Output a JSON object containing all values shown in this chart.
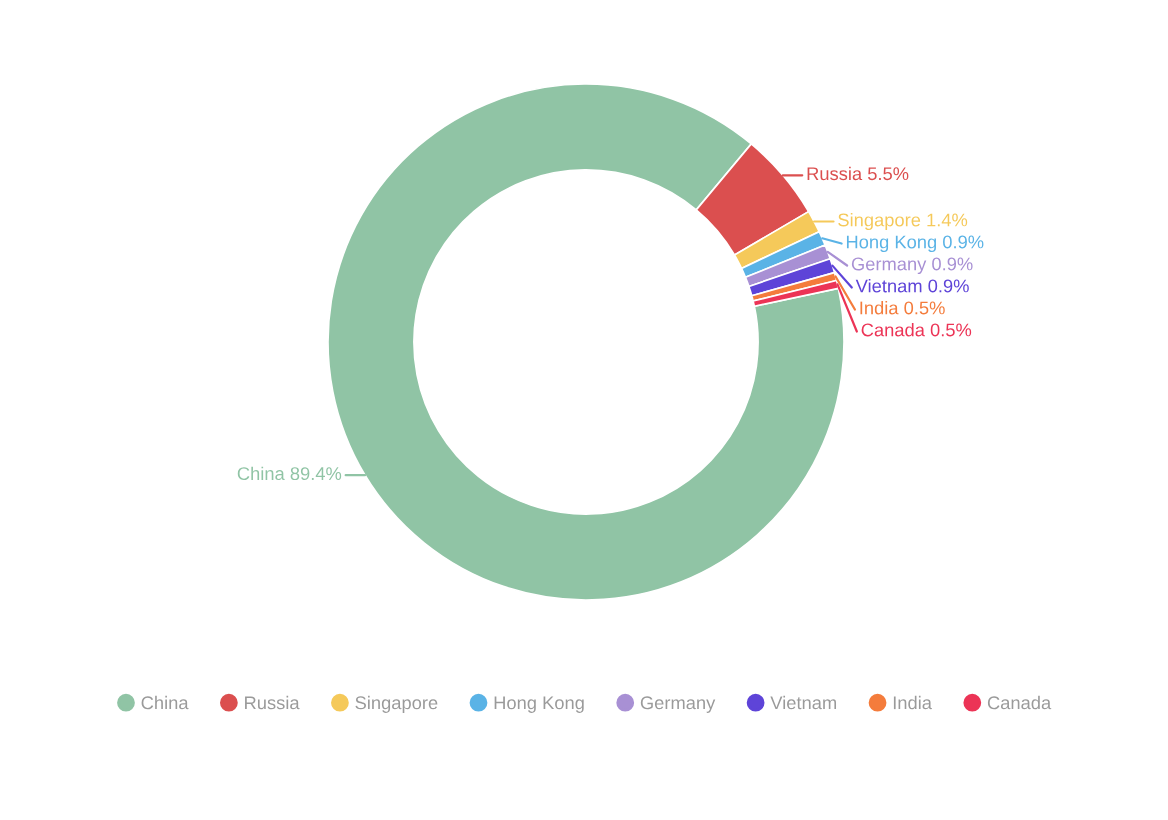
{
  "chart_data": {
    "type": "donut",
    "categories": [
      "China",
      "Russia",
      "Singapore",
      "Hong Kong",
      "Germany",
      "Vietnam",
      "India",
      "Canada"
    ],
    "values": [
      89.4,
      5.5,
      1.4,
      0.9,
      0.9,
      0.9,
      0.5,
      0.5
    ],
    "colors": [
      "#90c4a5",
      "#db4f4f",
      "#f5c95a",
      "#5ab3e6",
      "#a890d4",
      "#5e44d8",
      "#f47c3c",
      "#ec3456"
    ],
    "value_labels": [
      "China 89.4%",
      "Russia 5.5%",
      "Singapore 1.4%",
      "Hong Kong 0.9%",
      "Germany 0.9%",
      "Vietnam 0.9%",
      "India 0.5%",
      "Canada 0.5%"
    ],
    "legend": "bottom"
  }
}
